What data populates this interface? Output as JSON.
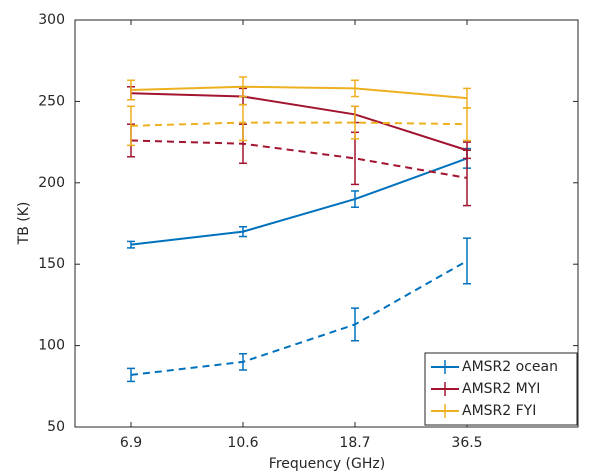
{
  "chart_data": {
    "type": "line",
    "x_label": "Frequency (GHz)",
    "y_label": "TB (K)",
    "categories": [
      "6.9",
      "10.6",
      "18.7",
      "36.5"
    ],
    "ylim": [
      50,
      300
    ],
    "yticks": [
      50,
      100,
      150,
      200,
      250,
      300
    ],
    "grid": false,
    "legend": "lower right",
    "series": [
      {
        "name": "AMSR2 ocean",
        "color": "#0072bd",
        "dashed": false,
        "values": [
          162,
          170,
          190,
          215
        ],
        "errors": [
          2,
          3,
          5,
          6
        ]
      },
      {
        "name": "AMSR2 MYI",
        "color": "#a2142f",
        "dashed": false,
        "values": [
          255,
          253,
          242,
          220
        ],
        "errors": [
          4,
          5,
          5,
          5
        ]
      },
      {
        "name": "AMSR2 FYI",
        "color": "#edb120",
        "dashed": false,
        "values": [
          257,
          259,
          258,
          252
        ],
        "errors": [
          6,
          6,
          5,
          6
        ]
      },
      {
        "color": "#0072bd",
        "dashed": true,
        "values": [
          82,
          90,
          113,
          152
        ],
        "errors": [
          4,
          5,
          10,
          14
        ]
      },
      {
        "color": "#a2142f",
        "dashed": true,
        "values": [
          226,
          224,
          215,
          203
        ],
        "errors": [
          10,
          12,
          16,
          17
        ]
      },
      {
        "color": "#edb120",
        "dashed": true,
        "values": [
          235,
          237,
          237,
          236
        ],
        "errors": [
          12,
          11,
          10,
          10
        ]
      }
    ]
  }
}
